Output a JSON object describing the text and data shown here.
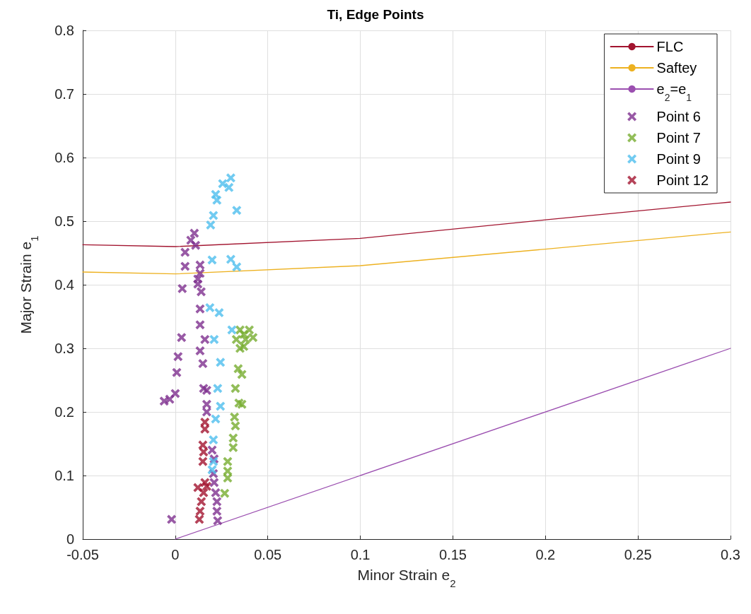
{
  "chart_data": {
    "type": "scatter",
    "title": "Ti, Edge Points",
    "xlabel": "Minor Strain e$_{2}$",
    "ylabel": "Major Strain e$_{1}$",
    "xlim": [
      -0.05,
      0.3
    ],
    "xticks": [
      -0.05,
      0,
      0.05,
      0.1,
      0.15,
      0.2,
      0.25,
      0.3
    ],
    "ylim": [
      0,
      0.8
    ],
    "yticks": [
      0,
      0.1,
      0.2,
      0.3,
      0.4,
      0.5,
      0.6,
      0.7,
      0.8
    ],
    "grid": true,
    "legend": "top right",
    "marker": "cross",
    "series": [
      {
        "name": "FLC",
        "type": "line",
        "marker": "none",
        "color": "#a2142f",
        "x": [
          -0.05,
          0,
          0.1,
          0.2,
          0.3
        ],
        "values": [
          0.463,
          0.46,
          0.473,
          0.502,
          0.53
        ]
      },
      {
        "name": "Saftey",
        "type": "line",
        "marker": "none",
        "color": "#edb120",
        "x": [
          -0.05,
          0,
          0.1,
          0.2,
          0.3
        ],
        "values": [
          0.42,
          0.417,
          0.43,
          0.456,
          0.483
        ]
      },
      {
        "name": "e$_{2}$=e$_{1}$",
        "type": "line",
        "marker": "none",
        "color": "#9b4fb0",
        "x": [
          0,
          0.3
        ],
        "values": [
          0,
          0.3
        ]
      },
      {
        "name": "Point 6",
        "color": "#7e2f8e",
        "x": [
          0.0103,
          0.0084,
          0.011,
          0.0053,
          0.0053,
          0.0038,
          0.0134,
          0.0134,
          0.0122,
          0.0122,
          0.014,
          0.0134,
          0.0134,
          0.016,
          0.0034,
          0.0134,
          0.0015,
          0.0008,
          -0.003,
          -0.006,
          0,
          0.0149,
          0.0153,
          0.017,
          0.017,
          0.017,
          0.0199,
          0.021,
          0.0206,
          0.021,
          0.0218,
          0.0225,
          0.0225,
          0.0229,
          -0.002
        ],
        "values": [
          0.481,
          0.47,
          0.462,
          0.451,
          0.429,
          0.394,
          0.431,
          0.418,
          0.409,
          0.401,
          0.389,
          0.362,
          0.337,
          0.314,
          0.317,
          0.296,
          0.287,
          0.262,
          0.22,
          0.217,
          0.229,
          0.276,
          0.237,
          0.234,
          0.212,
          0.2,
          0.14,
          0.126,
          0.103,
          0.089,
          0.073,
          0.059,
          0.044,
          0.029,
          0.031
        ]
      },
      {
        "name": "Point 7",
        "color": "#77ac30",
        "x": [
          0.035,
          0.04,
          0.042,
          0.037,
          0.033,
          0.038,
          0.037,
          0.035,
          0.034,
          0.036,
          0.0325,
          0.0344,
          0.036,
          0.032,
          0.0325,
          0.0313,
          0.0313,
          0.0283,
          0.0283,
          0.0283,
          0.0267
        ],
        "values": [
          0.329,
          0.329,
          0.317,
          0.303,
          0.314,
          0.314,
          0.322,
          0.3,
          0.268,
          0.259,
          0.237,
          0.214,
          0.212,
          0.192,
          0.178,
          0.159,
          0.144,
          0.122,
          0.107,
          0.096,
          0.072
        ]
      },
      {
        "name": "Point 9",
        "color": "#4dbeee",
        "x": [
          0.03,
          0.0256,
          0.029,
          0.0218,
          0.0225,
          0.0206,
          0.0191,
          0.0332,
          0.0199,
          0.03,
          0.0332,
          0.0187,
          0.0237,
          0.0306,
          0.021,
          0.0244,
          0.0229,
          0.0244,
          0.0218,
          0.0206,
          0.0206,
          0.0199
        ],
        "values": [
          0.568,
          0.559,
          0.553,
          0.542,
          0.533,
          0.509,
          0.494,
          0.517,
          0.439,
          0.44,
          0.428,
          0.364,
          0.356,
          0.329,
          0.314,
          0.278,
          0.237,
          0.209,
          0.189,
          0.156,
          0.122,
          0.109
        ]
      },
      {
        "name": "Point 12",
        "color": "#a2142f",
        "x": [
          0.016,
          0.016,
          0.0149,
          0.0153,
          0.0149,
          0.016,
          0.0122,
          0.0153,
          0.0141,
          0.0134,
          0.013,
          0.017
        ],
        "values": [
          0.184,
          0.173,
          0.148,
          0.137,
          0.122,
          0.089,
          0.081,
          0.073,
          0.059,
          0.044,
          0.031,
          0.083
        ]
      }
    ]
  }
}
